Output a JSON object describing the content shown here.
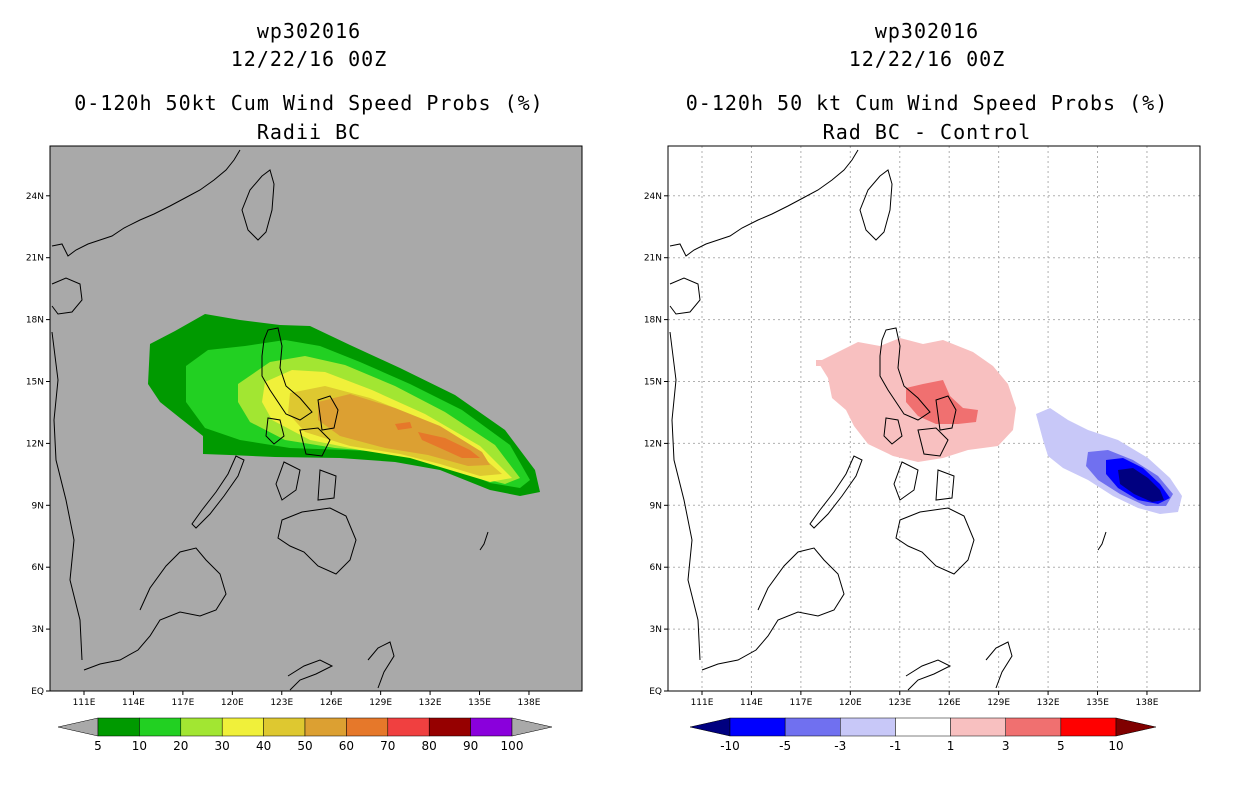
{
  "panels": [
    {
      "title_line1": "wp302016",
      "title_line2": "12/22/16 00Z",
      "title_line3": "0-120h 50kt Cum Wind Speed Probs (%)",
      "title_line4": "Radii BC",
      "background": "#a9a9a9",
      "lat_ticks": [
        "EQ",
        "3N",
        "6N",
        "9N",
        "12N",
        "15N",
        "18N",
        "21N",
        "24N"
      ],
      "lon_ticks": [
        "111E",
        "114E",
        "117E",
        "120E",
        "123E",
        "126E",
        "129E",
        "132E",
        "135E",
        "138E"
      ],
      "colorbar": {
        "colors": [
          "#009a00",
          "#22d022",
          "#a2e632",
          "#f0f03a",
          "#dec830",
          "#dca032",
          "#e6782a",
          "#f04040",
          "#960000",
          "#8a00dc"
        ],
        "labels": [
          "5",
          "10",
          "20",
          "30",
          "40",
          "50",
          "60",
          "70",
          "80",
          "90",
          "100"
        ],
        "under_color": "#a9a9a9",
        "over_color": "#a9a9a9"
      },
      "shaded_levels": [
        {
          "min": 5,
          "color": "#009a00"
        },
        {
          "min": 10,
          "color": "#22d022"
        },
        {
          "min": 20,
          "color": "#a2e632"
        },
        {
          "min": 30,
          "color": "#f0f03a"
        },
        {
          "min": 40,
          "color": "#dec830"
        },
        {
          "min": 50,
          "color": "#dca032"
        },
        {
          "min": 60,
          "color": "#e6782a"
        }
      ]
    },
    {
      "title_line1": "wp302016",
      "title_line2": "12/22/16 00Z",
      "title_line3": "0-120h 50 kt Cum Wind Speed Probs (%)",
      "title_line4": "Rad BC - Control",
      "background": "#ffffff",
      "lat_ticks": [
        "EQ",
        "3N",
        "6N",
        "9N",
        "12N",
        "15N",
        "18N",
        "21N",
        "24N"
      ],
      "lon_ticks": [
        "111E",
        "114E",
        "117E",
        "120E",
        "123E",
        "126E",
        "129E",
        "132E",
        "135E",
        "138E"
      ],
      "colorbar": {
        "colors": [
          "#0000ff",
          "#7070f0",
          "#c8c8f8",
          "#ffffff",
          "#f8c0c0",
          "#f07070",
          "#ff0000"
        ],
        "labels": [
          "-10",
          "-5",
          "-3",
          "-1",
          "1",
          "3",
          "5",
          "10"
        ],
        "under_color": "#000080",
        "over_color": "#800000"
      },
      "shaded_levels": [
        {
          "min": 1,
          "color": "#f8c0c0"
        },
        {
          "min": 3,
          "color": "#f07070"
        },
        {
          "max": -1,
          "color": "#c8c8f8"
        },
        {
          "max": -3,
          "color": "#7070f0"
        },
        {
          "max": -5,
          "color": "#0000ff"
        },
        {
          "max": -10,
          "color": "#000080"
        }
      ]
    }
  ]
}
